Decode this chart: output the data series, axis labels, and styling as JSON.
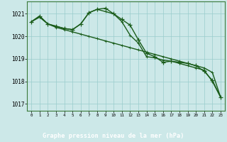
{
  "title": "Graphe pression niveau de la mer (hPa)",
  "bg_color": "#cce8e8",
  "plot_bg_color": "#cce8e8",
  "grid_color": "#99cccc",
  "line_color": "#1a5c1a",
  "label_bg_color": "#2d6b2d",
  "label_text_color": "#ffffff",
  "ylim": [
    1016.7,
    1021.55
  ],
  "yticks": [
    1017,
    1018,
    1019,
    1020,
    1021
  ],
  "xlim": [
    -0.5,
    23.5
  ],
  "xticks": [
    0,
    1,
    2,
    3,
    4,
    5,
    6,
    7,
    8,
    9,
    10,
    11,
    12,
    13,
    14,
    15,
    16,
    17,
    18,
    19,
    20,
    21,
    22,
    23
  ],
  "series1_x": [
    0,
    1,
    2,
    3,
    4,
    5,
    6,
    7,
    8,
    9,
    10,
    11,
    12,
    13,
    14,
    15,
    16,
    17,
    18,
    19,
    20,
    21,
    22,
    23
  ],
  "series1_y": [
    1020.65,
    1020.9,
    1020.55,
    1020.45,
    1020.35,
    1020.3,
    1020.55,
    1021.05,
    1021.2,
    1021.25,
    1021.0,
    1020.75,
    1020.5,
    1019.85,
    1019.25,
    1019.1,
    1018.85,
    1018.9,
    1018.85,
    1018.8,
    1018.7,
    1018.45,
    1018.05,
    1017.3
  ],
  "series2_x": [
    0,
    1,
    2,
    3,
    4,
    5,
    6,
    7,
    8,
    9,
    10,
    11,
    12,
    13,
    14,
    15,
    16,
    17,
    18,
    19,
    20,
    21,
    22,
    23
  ],
  "series2_y": [
    1020.65,
    1020.85,
    1020.55,
    1020.4,
    1020.3,
    1020.2,
    1020.1,
    1020.0,
    1019.9,
    1019.8,
    1019.7,
    1019.6,
    1019.5,
    1019.4,
    1019.3,
    1019.2,
    1019.1,
    1019.0,
    1018.9,
    1018.8,
    1018.7,
    1018.6,
    1018.4,
    1017.3
  ],
  "series3_x": [
    0,
    1,
    2,
    3,
    4,
    5,
    6,
    7,
    8,
    9,
    10,
    11,
    12,
    13,
    14,
    15,
    16,
    17,
    18,
    19,
    20,
    21,
    22,
    23
  ],
  "series3_y": [
    1020.65,
    1020.9,
    1020.55,
    1020.45,
    1020.35,
    1020.3,
    1020.55,
    1021.05,
    1021.2,
    1021.1,
    1021.0,
    1020.65,
    1020.05,
    1019.7,
    1019.1,
    1019.05,
    1018.95,
    1018.9,
    1018.8,
    1018.7,
    1018.6,
    1018.5,
    1018.0,
    1017.3
  ],
  "marker_size": 3,
  "linewidth": 1.0
}
